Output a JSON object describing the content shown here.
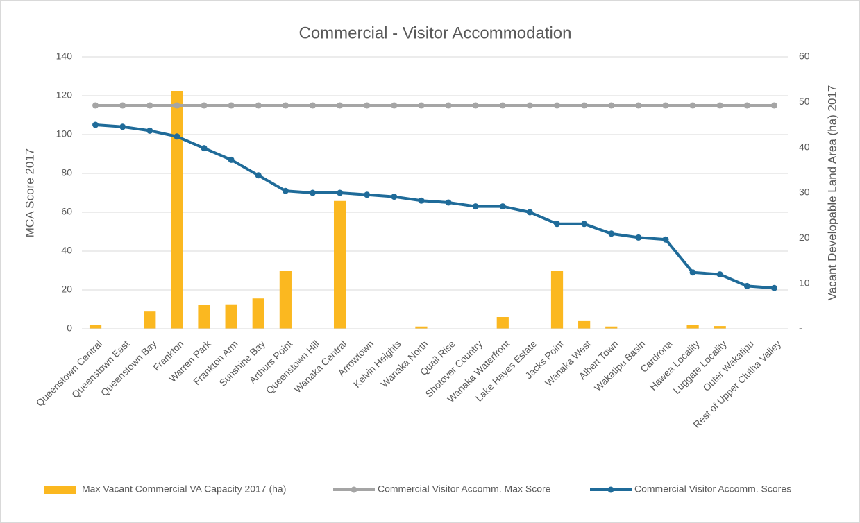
{
  "chart_data": {
    "type": "bar-line",
    "title": "Commercial - Visitor Accommodation",
    "y_label": "MCA Score 2017",
    "y2_label": "Vacant Developable Land Area (ha) 2017",
    "categories": [
      "Queenstown Central",
      "Queenstown East",
      "Queenstown Bay",
      "Frankton",
      "Warren Park",
      "Frankton Arm",
      "Sunshine Bay",
      "Arthurs Point",
      "Queenstown Hill",
      "Wanaka Central",
      "Arrowtown",
      "Kelvin Heights",
      "Wanaka North",
      "Quail Rise",
      "Shotover Country",
      "Wanaka Waterfront",
      "Lake Hayes Estate",
      "Jacks Point",
      "Wanaka West",
      "Albert Town",
      "Wakatipu Basin",
      "Cardrona",
      "Hawea Locality",
      "Luggate Locality",
      "Outer Wakatipu",
      "Rest of Upper Clutha Valley"
    ],
    "series": [
      {
        "name": "Max Vacant Commercial VA Capacity 2017 (ha)",
        "color": "#fbb820",
        "kind": "bar",
        "axis": "y2",
        "values": [
          0.8,
          0,
          3.8,
          52.5,
          5.3,
          5.4,
          6.7,
          12.8,
          0,
          28.2,
          0,
          0,
          0.5,
          0,
          0,
          2.6,
          0,
          12.8,
          1.7,
          0.5,
          0,
          0,
          0.8,
          0.6,
          0,
          0
        ]
      },
      {
        "name": "Commercial Visitor Accomm. Max Score",
        "color": "#a5a5a5",
        "kind": "line",
        "values": [
          115,
          115,
          115,
          115,
          115,
          115,
          115,
          115,
          115,
          115,
          115,
          115,
          115,
          115,
          115,
          115,
          115,
          115,
          115,
          115,
          115,
          115,
          115,
          115,
          115,
          115
        ]
      },
      {
        "name": "Commercial Visitor Accomm. Scores",
        "color": "#1f6b99",
        "kind": "line",
        "values": [
          105,
          104,
          102,
          99,
          93,
          87,
          79,
          71,
          70,
          70,
          69,
          68,
          66,
          65,
          63,
          63,
          60,
          54,
          54,
          49,
          47,
          46,
          29,
          28,
          22,
          21
        ]
      }
    ],
    "ylim": [
      0,
      140
    ],
    "yticks": [
      0,
      20,
      40,
      60,
      80,
      100,
      120,
      140
    ],
    "y2lim": [
      0,
      60
    ],
    "y2ticks": [
      {
        "value": 0,
        "label": "-"
      },
      10,
      20,
      30,
      40,
      50,
      60
    ],
    "grid": true,
    "legend": "bottom"
  }
}
